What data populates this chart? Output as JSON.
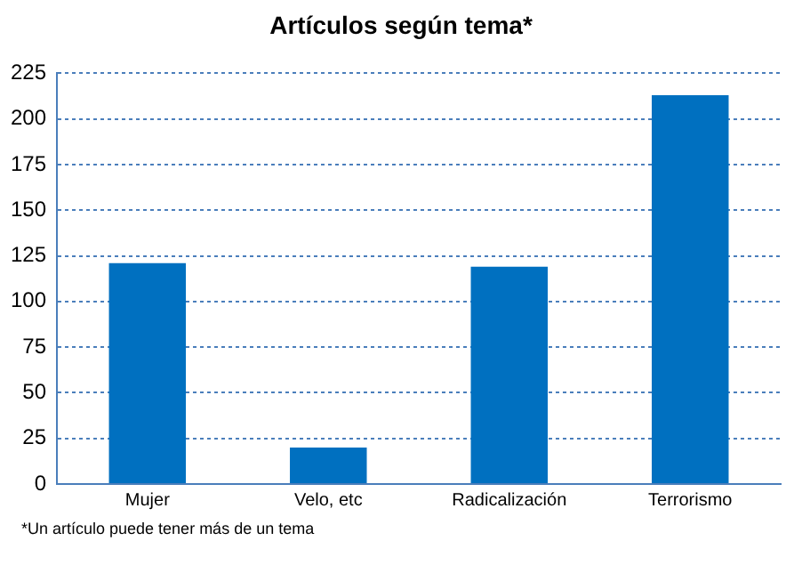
{
  "chart_data": {
    "type": "bar",
    "title": "Artículos según tema*",
    "categories": [
      "Mujer",
      "Velo, etc",
      "Radicalización",
      "Terrorismo"
    ],
    "values": [
      121,
      20,
      119,
      213
    ],
    "color": "#0070c0",
    "ylim": [
      0,
      225
    ],
    "yticks": [
      0,
      25,
      50,
      75,
      100,
      125,
      150,
      175,
      200,
      225
    ],
    "grid": "y",
    "annotations": [
      "*Un artículo puede tener más de un tema"
    ]
  }
}
